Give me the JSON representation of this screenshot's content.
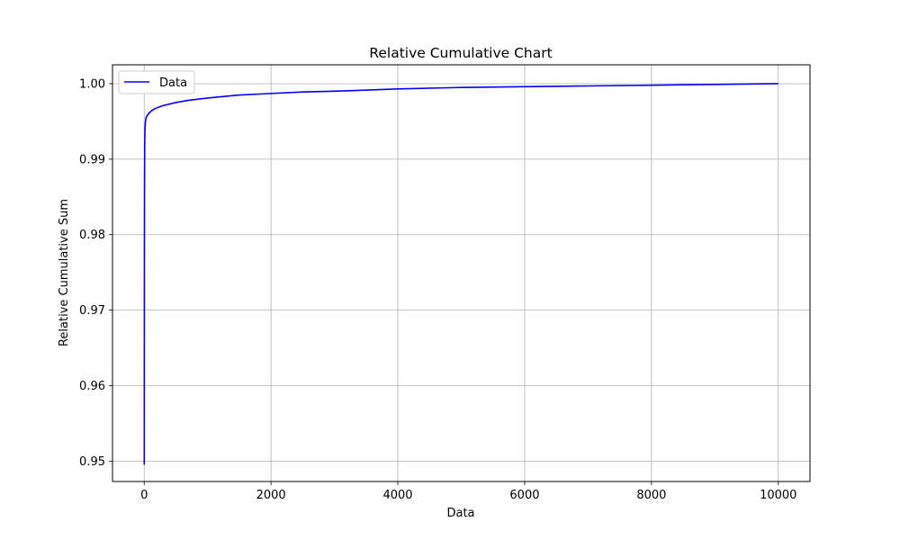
{
  "chart_data": {
    "type": "line",
    "title": "Relative Cumulative Chart",
    "xlabel": "Data",
    "ylabel": "Relative Cumulative Sum",
    "xlim": [
      -500,
      10500
    ],
    "ylim": [
      0.9473,
      1.0025
    ],
    "xticks": [
      0,
      2000,
      4000,
      6000,
      8000,
      10000
    ],
    "xtick_labels": [
      "0",
      "2000",
      "4000",
      "6000",
      "8000",
      "10000"
    ],
    "yticks": [
      0.95,
      0.96,
      0.97,
      0.98,
      0.99,
      1.0
    ],
    "ytick_labels": [
      "0.95",
      "0.96",
      "0.97",
      "0.98",
      "0.99",
      "1.00"
    ],
    "grid": true,
    "legend_position": "top-left",
    "series": [
      {
        "name": "Data",
        "color": "#0000ff",
        "x": [
          1,
          2,
          3,
          5,
          8,
          12,
          20,
          30,
          50,
          75,
          100,
          150,
          200,
          300,
          400,
          500,
          700,
          1000,
          1500,
          2000,
          2500,
          3000,
          4000,
          5000,
          6000,
          7000,
          8000,
          9000,
          10000
        ],
        "y": [
          0.9495,
          0.964,
          0.976,
          0.986,
          0.992,
          0.994,
          0.995,
          0.9955,
          0.9958,
          0.9961,
          0.9963,
          0.9966,
          0.9968,
          0.9971,
          0.9973,
          0.9975,
          0.9978,
          0.9981,
          0.9985,
          0.9987,
          0.9989,
          0.999,
          0.9993,
          0.9995,
          0.9996,
          0.9997,
          0.9998,
          0.9999,
          1.0
        ]
      }
    ]
  }
}
